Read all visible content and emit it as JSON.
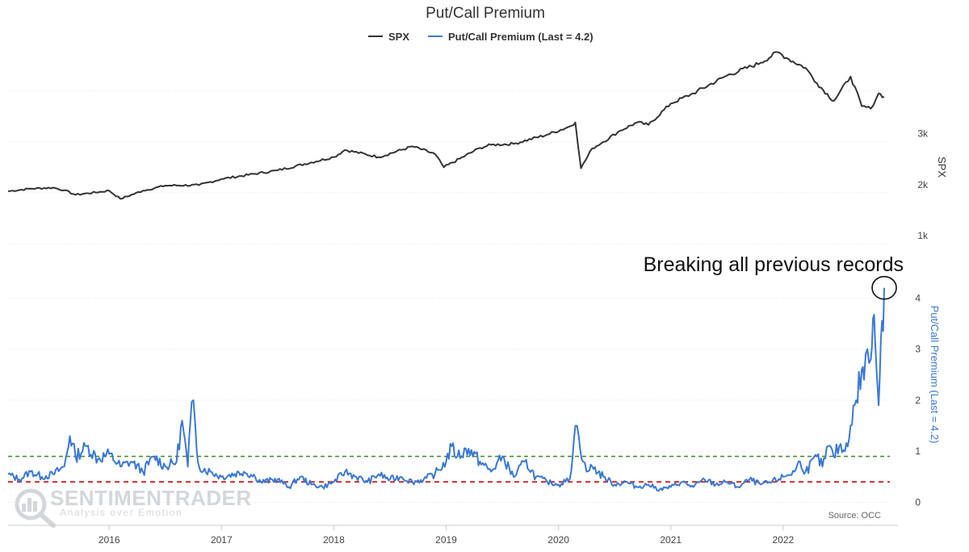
{
  "chart_data": {
    "type": "line",
    "title": "Put/Call Premium",
    "legend": [
      {
        "name": "SPX",
        "color": "#333333"
      },
      {
        "name": "Put/Call Premium (Last = 4.2)",
        "color": "#3b78d4"
      }
    ],
    "x_ticks": [
      "2016",
      "2017",
      "2018",
      "2019",
      "2020",
      "2021",
      "2022"
    ],
    "x_range": [
      2015.1,
      2022.95
    ],
    "panels": {
      "spx": {
        "axis_label": "SPX",
        "ylim": [
          1000,
          4800
        ],
        "y_ticks": [
          {
            "value": 1000,
            "label": "1k"
          },
          {
            "value": 2000,
            "label": "2k"
          },
          {
            "value": 3000,
            "label": "3k"
          }
        ],
        "series": {
          "name": "SPX",
          "x": [
            2015.1,
            2015.3,
            2015.5,
            2015.6,
            2015.7,
            2016.0,
            2016.1,
            2016.3,
            2016.5,
            2016.8,
            2017.0,
            2017.5,
            2018.0,
            2018.1,
            2018.4,
            2018.7,
            2018.9,
            2018.98,
            2019.3,
            2019.4,
            2019.6,
            2019.9,
            2020.1,
            2020.15,
            2020.2,
            2020.3,
            2020.4,
            2020.55,
            2020.7,
            2020.8,
            2021.0,
            2021.2,
            2021.5,
            2021.8,
            2021.95,
            2022.05,
            2022.2,
            2022.3,
            2022.45,
            2022.6,
            2022.7,
            2022.78,
            2022.85,
            2022.9
          ],
          "values": [
            2030,
            2080,
            2100,
            2050,
            1960,
            2040,
            1880,
            2040,
            2140,
            2150,
            2270,
            2440,
            2700,
            2840,
            2700,
            2910,
            2760,
            2500,
            2880,
            2940,
            2960,
            3140,
            3300,
            3380,
            2480,
            2870,
            3000,
            3220,
            3380,
            3330,
            3750,
            3950,
            4300,
            4550,
            4760,
            4620,
            4450,
            4150,
            3800,
            4280,
            3700,
            3650,
            3950,
            3880
          ]
        }
      },
      "put_call": {
        "axis_label": "Put/Call Premium (Last = 4.2)",
        "ylim": [
          -0.15,
          4.4
        ],
        "y_ticks": [
          {
            "value": 0,
            "label": "0"
          },
          {
            "value": 1,
            "label": "1"
          },
          {
            "value": 2,
            "label": "2"
          },
          {
            "value": 3,
            "label": "3"
          },
          {
            "value": 4,
            "label": "4"
          }
        ],
        "reference_lines": [
          {
            "value": 0.9,
            "color": "#3a8a20",
            "style": "dashed"
          },
          {
            "value": 0.4,
            "color": "#d92b2b",
            "style": "dashed"
          }
        ],
        "series": {
          "name": "Put/Call Premium",
          "x": [
            2015.1,
            2015.2,
            2015.3,
            2015.4,
            2015.5,
            2015.6,
            2015.65,
            2015.7,
            2015.8,
            2015.9,
            2016.0,
            2016.1,
            2016.2,
            2016.3,
            2016.4,
            2016.5,
            2016.6,
            2016.65,
            2016.7,
            2016.72,
            2016.75,
            2016.78,
            2016.8,
            2016.9,
            2017.0,
            2017.2,
            2017.3,
            2017.35,
            2017.5,
            2017.6,
            2017.7,
            2017.8,
            2017.9,
            2018.0,
            2018.1,
            2018.2,
            2018.3,
            2018.4,
            2018.5,
            2018.6,
            2018.7,
            2018.8,
            2018.9,
            2019.0,
            2019.05,
            2019.1,
            2019.2,
            2019.3,
            2019.4,
            2019.5,
            2019.6,
            2019.7,
            2019.8,
            2019.9,
            2020.0,
            2020.1,
            2020.15,
            2020.18,
            2020.22,
            2020.25,
            2020.3,
            2020.4,
            2020.5,
            2020.6,
            2020.7,
            2020.8,
            2020.9,
            2021.0,
            2021.1,
            2021.2,
            2021.3,
            2021.4,
            2021.5,
            2021.6,
            2021.7,
            2021.8,
            2021.9,
            2022.0,
            2022.1,
            2022.15,
            2022.2,
            2022.3,
            2022.35,
            2022.4,
            2022.45,
            2022.5,
            2022.55,
            2022.6,
            2022.65,
            2022.7,
            2022.72,
            2022.75,
            2022.78,
            2022.8,
            2022.82,
            2022.85,
            2022.87,
            2022.9
          ],
          "values": [
            0.55,
            0.45,
            0.6,
            0.5,
            0.55,
            0.7,
            1.3,
            0.9,
            1.1,
            0.85,
            0.95,
            0.7,
            0.8,
            0.6,
            0.9,
            0.7,
            0.8,
            1.6,
            0.7,
            1.5,
            2.0,
            1.0,
            0.7,
            0.6,
            0.5,
            0.6,
            0.5,
            0.4,
            0.45,
            0.3,
            0.5,
            0.35,
            0.3,
            0.4,
            0.6,
            0.5,
            0.4,
            0.55,
            0.45,
            0.5,
            0.4,
            0.45,
            0.55,
            0.8,
            1.1,
            0.9,
            1.05,
            0.8,
            0.6,
            0.9,
            0.5,
            0.8,
            0.5,
            0.4,
            0.35,
            0.45,
            1.5,
            1.3,
            0.8,
            0.6,
            0.7,
            0.5,
            0.35,
            0.4,
            0.3,
            0.35,
            0.25,
            0.3,
            0.4,
            0.3,
            0.45,
            0.35,
            0.4,
            0.3,
            0.45,
            0.35,
            0.4,
            0.5,
            0.6,
            0.8,
            0.6,
            0.9,
            0.7,
            1.1,
            0.9,
            1.1,
            1.0,
            1.5,
            2.0,
            2.6,
            2.4,
            3.0,
            2.8,
            3.6,
            3.1,
            1.9,
            3.2,
            4.2
          ]
        }
      }
    },
    "annotation": {
      "text": "Breaking all previous records",
      "x": 2022.9,
      "y": 4.2
    }
  },
  "watermark": {
    "brand": "SENTIMENTRADER",
    "tagline": "Analysis over Emotion"
  },
  "source": "Source: OCC"
}
